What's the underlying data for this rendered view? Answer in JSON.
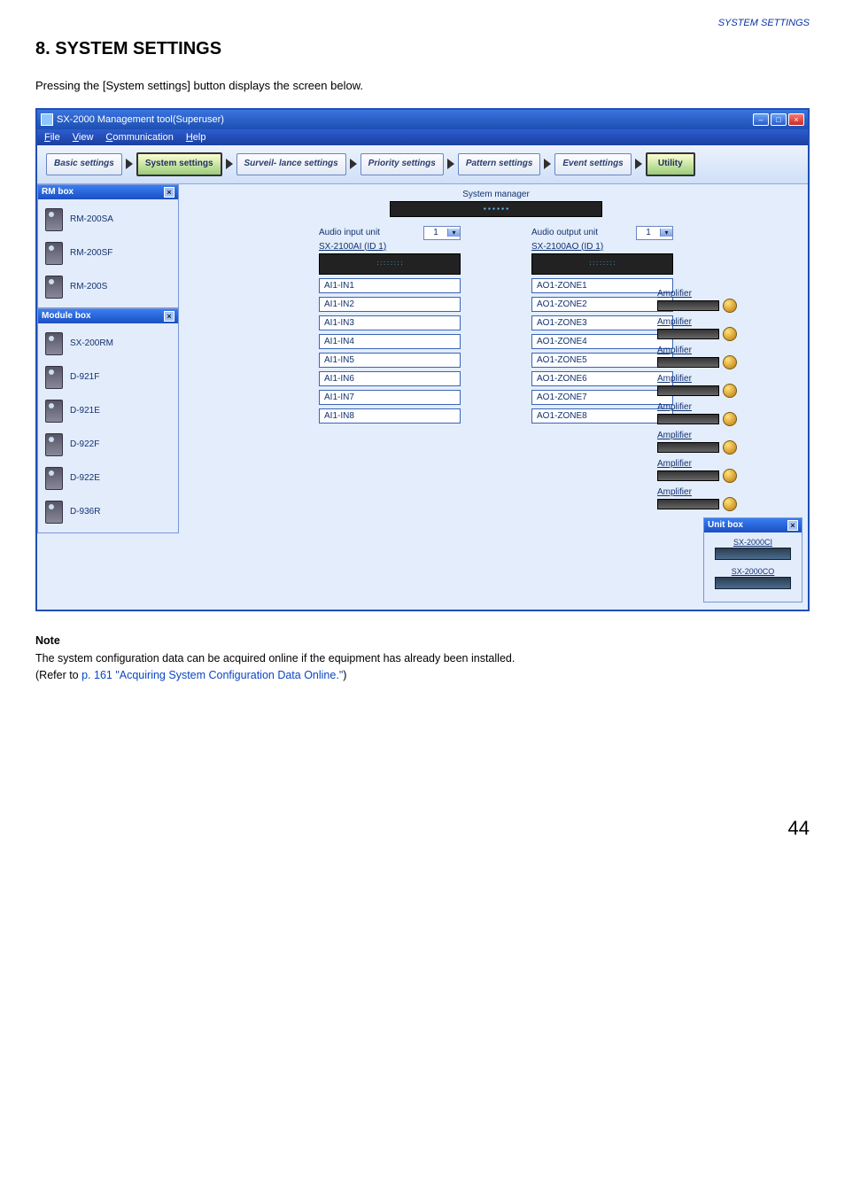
{
  "header_label": "SYSTEM SETTINGS",
  "section_title": "8. SYSTEM SETTINGS",
  "intro_text": "Pressing the [System settings] button displays the screen below.",
  "window": {
    "title": "SX-2000 Management tool(Superuser)",
    "menus": [
      "File",
      "View",
      "Communication",
      "Help"
    ],
    "toolbar": {
      "basic": "Basic settings",
      "system": "System settings",
      "surveil": "Surveil- lance settings",
      "priority": "Priority settings",
      "pattern": "Pattern settings",
      "event": "Event settings",
      "utility": "Utility"
    }
  },
  "rm_box": {
    "title": "RM box",
    "items": [
      "RM-200SA",
      "RM-200SF",
      "RM-200S"
    ]
  },
  "module_box": {
    "title": "Module box",
    "items": [
      "SX-200RM",
      "D-921F",
      "D-921E",
      "D-922F",
      "D-922E",
      "D-936R"
    ]
  },
  "system_manager": {
    "label": "System manager",
    "audio_input": {
      "label": "Audio input unit",
      "selector": "1",
      "unit_id": "SX-2100AI (ID 1)",
      "channels": [
        "AI1-IN1",
        "AI1-IN2",
        "AI1-IN3",
        "AI1-IN4",
        "AI1-IN5",
        "AI1-IN6",
        "AI1-IN7",
        "AI1-IN8"
      ]
    },
    "audio_output": {
      "label": "Audio output unit",
      "selector": "1",
      "unit_id": "SX-2100AO (ID 1)",
      "channels": [
        "AO1-ZONE1",
        "AO1-ZONE2",
        "AO1-ZONE3",
        "AO1-ZONE4",
        "AO1-ZONE5",
        "AO1-ZONE6",
        "AO1-ZONE7",
        "AO1-ZONE8"
      ]
    },
    "amplifier_label": "Amplifier"
  },
  "unit_box": {
    "title": "Unit box",
    "items": [
      "SX-2000CI",
      "SX-2000CO"
    ]
  },
  "note": {
    "heading": "Note",
    "line1": "The system configuration data can be acquired online if the equipment has already been installed.",
    "line2_prefix": "(Refer to ",
    "line2_link": "p. 161 \"Acquiring System Configuration Data Online.\"",
    "line2_suffix": ")"
  },
  "page_number": "44"
}
